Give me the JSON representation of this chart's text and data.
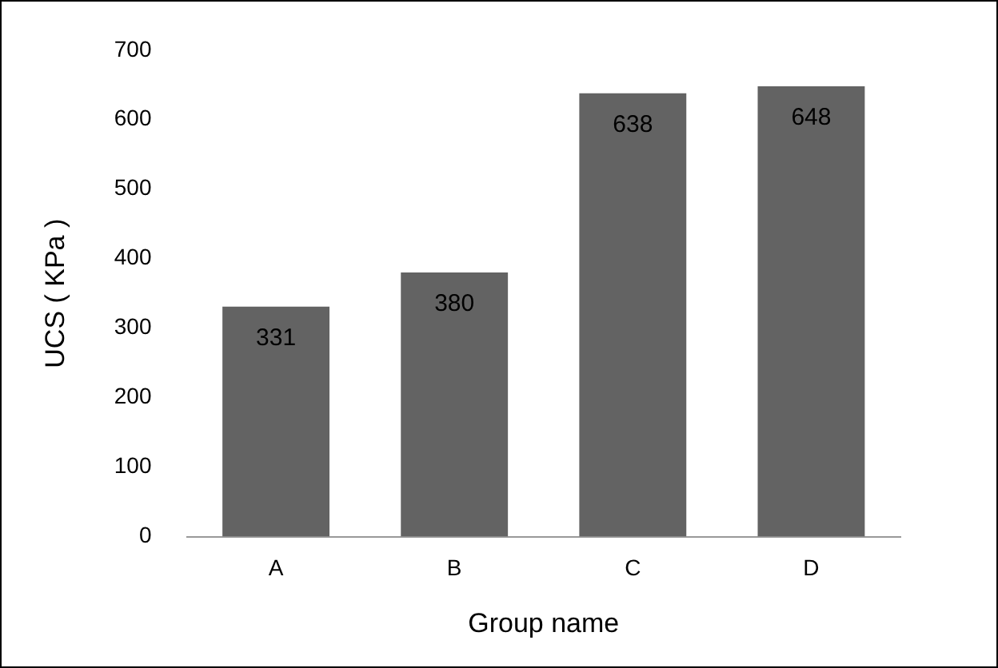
{
  "chart_data": {
    "type": "bar",
    "xlabel": "Group name",
    "ylabel": "UCS ( KPa )",
    "categories": [
      "A",
      "B",
      "C",
      "D"
    ],
    "values": [
      331,
      380,
      638,
      648
    ],
    "color": "#636363",
    "ylim": [
      0,
      700
    ],
    "yticks": [
      0,
      100,
      200,
      300,
      400,
      500,
      600,
      700
    ],
    "grid": false,
    "legend": false,
    "data_labels": true
  }
}
